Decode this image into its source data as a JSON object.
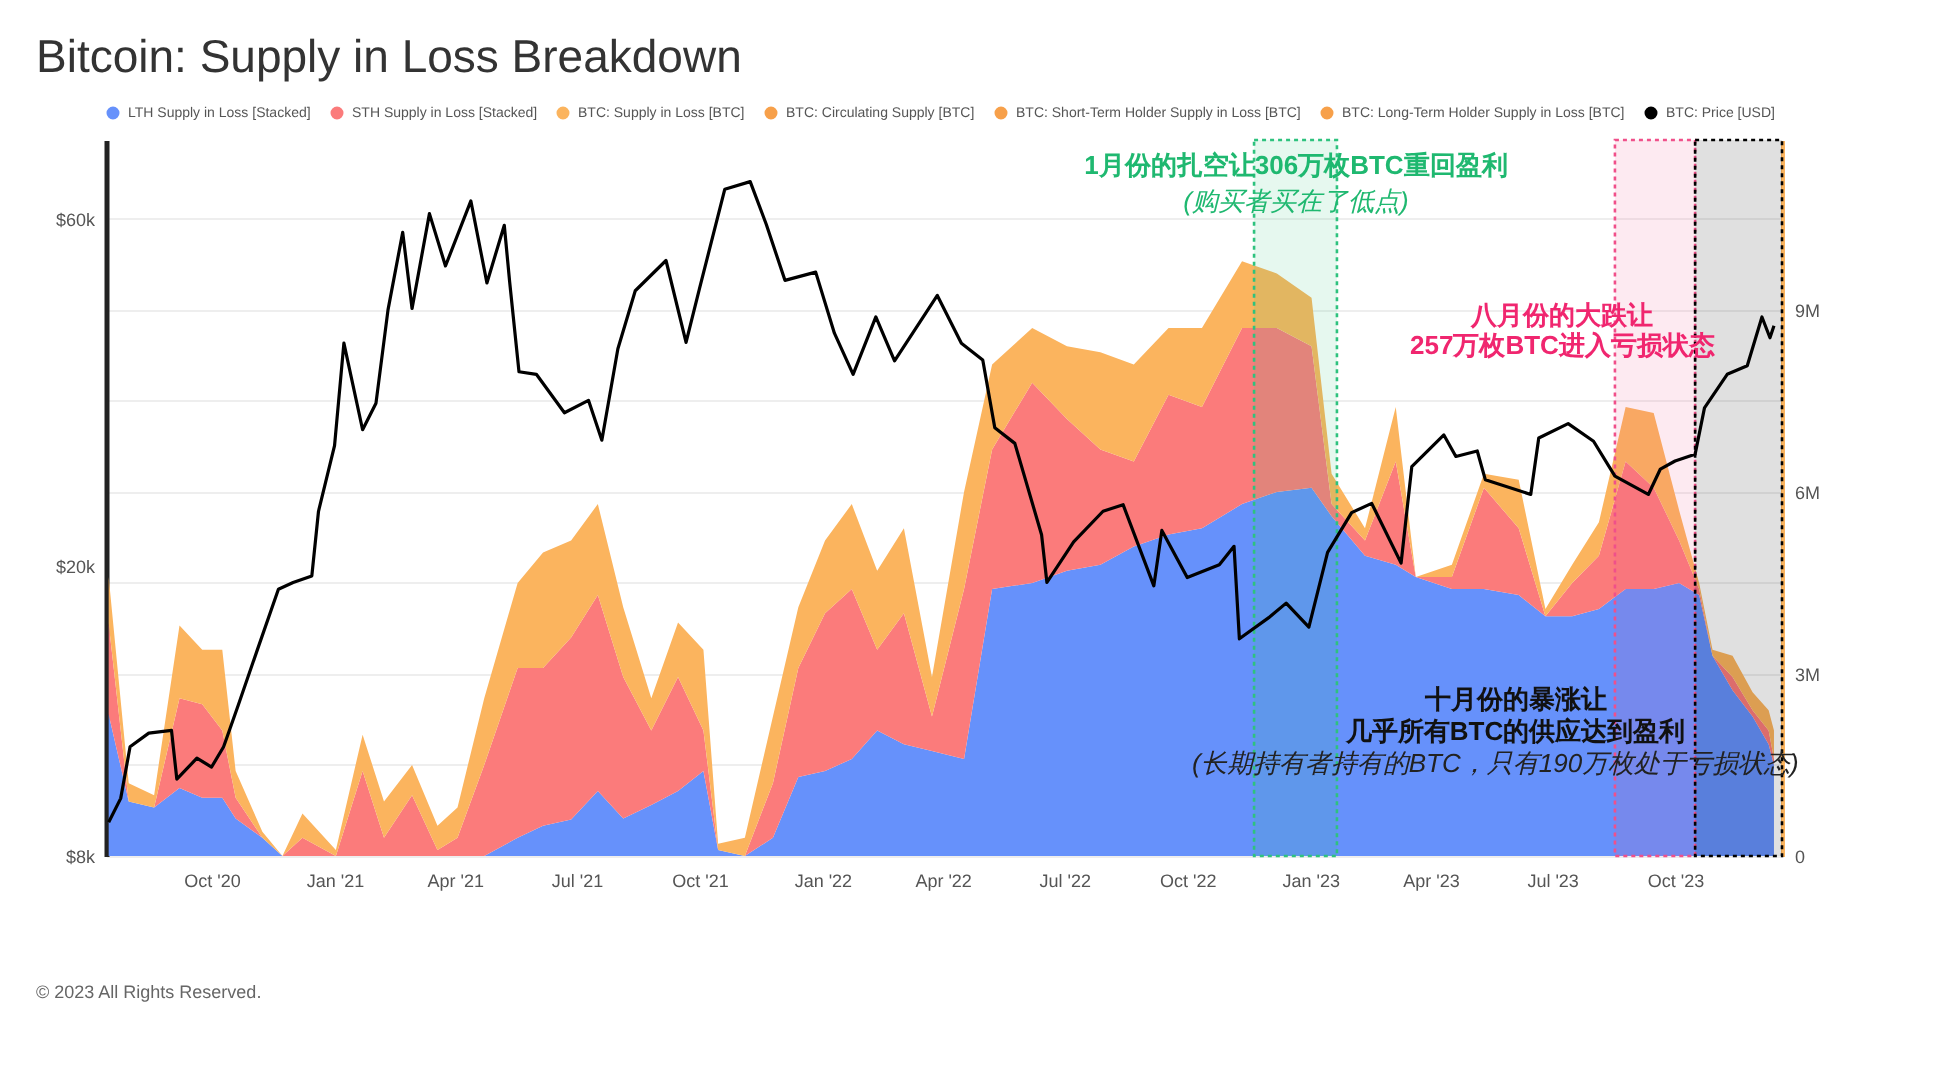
{
  "chart_data": {
    "type": "area",
    "title": "Bitcoin: Supply in Loss Breakdown",
    "xlim": [
      "2020-07-14",
      "2023-12-20"
    ],
    "xticks": [
      {
        "value": "2020-10-01",
        "label": "Oct '20"
      },
      {
        "value": "2021-01-01",
        "label": "Jan '21"
      },
      {
        "value": "2021-04-01",
        "label": "Apr '21"
      },
      {
        "value": "2021-07-01",
        "label": "Jul '21"
      },
      {
        "value": "2021-10-01",
        "label": "Oct '21"
      },
      {
        "value": "2022-01-01",
        "label": "Jan '22"
      },
      {
        "value": "2022-04-01",
        "label": "Apr '22"
      },
      {
        "value": "2022-07-01",
        "label": "Jul '22"
      },
      {
        "value": "2022-10-01",
        "label": "Oct '22"
      },
      {
        "value": "2023-01-01",
        "label": "Jan '23"
      },
      {
        "value": "2023-04-01",
        "label": "Apr '23"
      },
      {
        "value": "2023-07-01",
        "label": "Jul '23"
      },
      {
        "value": "2023-10-01",
        "label": "Oct '23"
      }
    ],
    "log": "y",
    "ylim": [
      8000,
      77000
    ],
    "yticks": [
      {
        "value": 8000,
        "label": "$8k"
      },
      {
        "value": 20000,
        "label": "$20k"
      },
      {
        "value": 60000,
        "label": "$60k"
      }
    ],
    "y2lim": [
      0,
      11.8
    ],
    "y2ticks": [
      0,
      {
        "value": 1.5,
        "label": null
      },
      {
        "value": 3,
        "label": "3M"
      },
      {
        "value": 4.5,
        "label": null
      },
      {
        "value": 6,
        "label": "6M"
      },
      {
        "value": 7.5,
        "label": null
      },
      {
        "value": 9,
        "label": "9M"
      },
      {
        "value": 10.5,
        "label": null
      }
    ],
    "grid": "y2",
    "legend": "top",
    "stacked": true,
    "marker": "none",
    "line_style": "solid",
    "series": [
      {
        "name": "LTH Supply in Loss [Stacked]",
        "color": "#6691fb",
        "axis": "y2",
        "x": [
          "2020-07-16",
          "2020-07-31",
          "2020-08-19",
          "2020-09-07",
          "2020-09-24",
          "2020-10-09",
          "2020-10-19",
          "2020-11-08",
          "2020-11-23",
          "2020-12-08",
          "2021-01-02",
          "2021-01-22",
          "2021-02-07",
          "2021-02-28",
          "2021-03-19",
          "2021-04-03",
          "2021-04-23",
          "2021-05-18",
          "2021-06-06",
          "2021-06-27",
          "2021-07-17",
          "2021-08-05",
          "2021-08-26",
          "2021-09-15",
          "2021-10-04",
          "2021-10-15",
          "2021-11-04",
          "2021-11-25",
          "2021-12-14",
          "2022-01-03",
          "2022-01-23",
          "2022-02-11",
          "2022-03-03",
          "2022-03-24",
          "2022-04-17",
          "2022-05-08",
          "2022-06-07",
          "2022-07-03",
          "2022-07-28",
          "2022-08-22",
          "2022-09-17",
          "2022-10-12",
          "2022-11-11",
          "2022-12-07",
          "2023-01-02",
          "2023-01-17",
          "2023-02-11",
          "2023-03-06",
          "2023-03-21",
          "2023-04-17",
          "2023-05-11",
          "2023-06-06",
          "2023-06-26",
          "2023-07-16",
          "2023-08-05",
          "2023-08-25",
          "2023-09-15",
          "2023-10-04",
          "2023-10-19",
          "2023-10-29",
          "2023-11-13",
          "2023-11-28",
          "2023-12-10",
          "2023-12-14"
        ],
        "values": [
          2.33,
          0.9,
          0.8,
          1.12,
          0.96,
          0.96,
          0.62,
          0.3,
          0,
          0,
          0,
          0,
          0,
          0,
          0,
          0,
          0,
          0.3,
          0.5,
          0.6,
          1.07,
          0.62,
          0.84,
          1.07,
          1.4,
          0.1,
          0,
          0.3,
          1.3,
          1.4,
          1.6,
          2.07,
          1.84,
          1.73,
          1.6,
          4.4,
          4.5,
          4.7,
          4.8,
          5.1,
          5.3,
          5.4,
          5.8,
          6.0,
          6.07,
          5.6,
          4.95,
          4.8,
          4.6,
          4.4,
          4.4,
          4.3,
          3.95,
          3.95,
          4.07,
          4.4,
          4.4,
          4.5,
          4.3,
          3.3,
          2.73,
          2.3,
          1.84,
          1.5
        ]
      },
      {
        "name": "STH Supply in Loss [Stacked]",
        "color": "#fb7b7b",
        "axis": "y2",
        "x": [
          "2020-07-16",
          "2020-07-31",
          "2020-08-19",
          "2020-09-07",
          "2020-09-24",
          "2020-10-09",
          "2020-10-19",
          "2020-11-08",
          "2020-11-23",
          "2020-12-08",
          "2021-01-02",
          "2021-01-22",
          "2021-02-07",
          "2021-02-28",
          "2021-03-19",
          "2021-04-03",
          "2021-04-23",
          "2021-05-18",
          "2021-06-06",
          "2021-06-27",
          "2021-07-17",
          "2021-08-05",
          "2021-08-26",
          "2021-09-15",
          "2021-10-04",
          "2021-10-15",
          "2021-11-04",
          "2021-11-25",
          "2021-12-14",
          "2022-01-03",
          "2022-01-23",
          "2022-02-11",
          "2022-03-03",
          "2022-03-24",
          "2022-04-17",
          "2022-05-08",
          "2022-06-07",
          "2022-07-03",
          "2022-07-28",
          "2022-08-22",
          "2022-09-17",
          "2022-10-12",
          "2022-11-11",
          "2022-12-07",
          "2023-01-02",
          "2023-01-17",
          "2023-02-11",
          "2023-03-06",
          "2023-03-21",
          "2023-04-17",
          "2023-05-11",
          "2023-06-06",
          "2023-06-26",
          "2023-07-16",
          "2023-08-05",
          "2023-08-25",
          "2023-09-15",
          "2023-10-04",
          "2023-10-19",
          "2023-10-29",
          "2023-11-13",
          "2023-11-28",
          "2023-12-10",
          "2023-12-14"
        ],
        "values": [
          1.5,
          0,
          0,
          1.48,
          1.54,
          1.11,
          0.34,
          0,
          0,
          0.3,
          0,
          1.4,
          0.3,
          1.0,
          0.1,
          0.3,
          1.5,
          2.8,
          2.6,
          3.0,
          3.23,
          2.33,
          1.23,
          1.88,
          0.67,
          0,
          0,
          0.9,
          1.8,
          2.6,
          2.8,
          1.33,
          2.16,
          0.57,
          2.8,
          2.3,
          3.3,
          2.5,
          1.9,
          1.4,
          2.3,
          2.0,
          2.9,
          2.7,
          2.33,
          0.2,
          0.25,
          1.7,
          0,
          0.2,
          1.67,
          1.1,
          0,
          0.55,
          0.88,
          2.1,
          1.67,
          0.7,
          0.1,
          0,
          0.22,
          0.1,
          0.23,
          0.1
        ]
      },
      {
        "name": "BTC: Supply in Loss [BTC]",
        "color": "#fbb45e",
        "axis": "y2",
        "x": [
          "2020-07-16",
          "2020-07-31",
          "2020-08-19",
          "2020-09-07",
          "2020-09-24",
          "2020-10-09",
          "2020-10-19",
          "2020-11-08",
          "2020-11-23",
          "2020-12-08",
          "2021-01-02",
          "2021-01-22",
          "2021-02-07",
          "2021-02-28",
          "2021-03-19",
          "2021-04-03",
          "2021-04-23",
          "2021-05-18",
          "2021-06-06",
          "2021-06-27",
          "2021-07-17",
          "2021-08-05",
          "2021-08-26",
          "2021-09-15",
          "2021-10-04",
          "2021-10-15",
          "2021-11-04",
          "2021-11-25",
          "2021-12-14",
          "2022-01-03",
          "2022-01-23",
          "2022-02-11",
          "2022-03-03",
          "2022-03-24",
          "2022-04-17",
          "2022-05-08",
          "2022-06-07",
          "2022-07-03",
          "2022-07-28",
          "2022-08-22",
          "2022-09-17",
          "2022-10-12",
          "2022-11-11",
          "2022-12-07",
          "2023-01-02",
          "2023-01-17",
          "2023-02-11",
          "2023-03-06",
          "2023-03-21",
          "2023-04-17",
          "2023-05-11",
          "2023-06-06",
          "2023-06-26",
          "2023-07-16",
          "2023-08-05",
          "2023-08-25",
          "2023-09-15",
          "2023-10-04",
          "2023-10-19",
          "2023-10-29",
          "2023-11-13",
          "2023-11-28",
          "2023-12-10",
          "2023-12-14"
        ],
        "values": [
          0.77,
          0.3,
          0.2,
          1.2,
          0.9,
          1.33,
          0.44,
          0.1,
          0,
          0.4,
          0.1,
          0.6,
          0.6,
          0.5,
          0.4,
          0.5,
          1.1,
          1.4,
          1.9,
          1.6,
          1.5,
          1.15,
          0.53,
          0.9,
          1.33,
          0.1,
          0.3,
          1.1,
          1.0,
          1.2,
          1.4,
          1.3,
          1.4,
          0.65,
          1.6,
          1.4,
          0.9,
          1.2,
          1.6,
          1.6,
          1.1,
          1.3,
          1.1,
          0.9,
          0.8,
          0.5,
          0.2,
          0.9,
          0,
          0.2,
          0.23,
          0.8,
          0.12,
          0.3,
          0.55,
          0.9,
          1.23,
          0.5,
          0.1,
          0.1,
          0.35,
          0.3,
          0.33,
          0.47
        ]
      },
      {
        "name": "BTC: Circulating Supply [BTC]",
        "color": "#f7a04a",
        "axis": "y2"
      },
      {
        "name": "BTC: Short-Term Holder Supply in Loss [BTC]",
        "color": "#f7a04a",
        "axis": "y2"
      },
      {
        "name": "BTC: Long-Term Holder Supply in Loss [BTC]",
        "color": "#f7a04a",
        "axis": "y2"
      },
      {
        "name": "BTC: Price [USD]",
        "color": "#000000",
        "type": "line",
        "axis": "y",
        "x": [
          "2020-07-16",
          "2020-07-25",
          "2020-08-01",
          "2020-08-15",
          "2020-09-01",
          "2020-09-05",
          "2020-09-20",
          "2020-10-01",
          "2020-10-10",
          "2020-10-21",
          "2020-11-05",
          "2020-11-20",
          "2020-12-01",
          "2020-12-15",
          "2020-12-20",
          "2021-01-01",
          "2021-01-08",
          "2021-01-22",
          "2021-02-01",
          "2021-02-10",
          "2021-02-21",
          "2021-02-28",
          "2021-03-13",
          "2021-03-25",
          "2021-04-13",
          "2021-04-25",
          "2021-05-08",
          "2021-05-12",
          "2021-05-19",
          "2021-06-01",
          "2021-06-22",
          "2021-07-10",
          "2021-07-20",
          "2021-08-01",
          "2021-08-14",
          "2021-09-06",
          "2021-09-21",
          "2021-10-01",
          "2021-10-20",
          "2021-11-08",
          "2021-11-20",
          "2021-12-04",
          "2021-12-27",
          "2022-01-10",
          "2022-01-24",
          "2022-02-10",
          "2022-02-24",
          "2022-03-28",
          "2022-04-15",
          "2022-05-01",
          "2022-05-10",
          "2022-05-25",
          "2022-06-14",
          "2022-06-18",
          "2022-07-08",
          "2022-07-30",
          "2022-08-14",
          "2022-09-06",
          "2022-09-12",
          "2022-10-01",
          "2022-10-25",
          "2022-11-05",
          "2022-11-09",
          "2022-12-01",
          "2022-12-14",
          "2022-12-31",
          "2023-01-14",
          "2023-02-01",
          "2023-02-16",
          "2023-03-10",
          "2023-03-18",
          "2023-04-11",
          "2023-04-20",
          "2023-05-06",
          "2023-05-12",
          "2023-06-15",
          "2023-06-21",
          "2023-07-13",
          "2023-08-01",
          "2023-08-17",
          "2023-09-11",
          "2023-09-20",
          "2023-10-01",
          "2023-10-16",
          "2023-10-23",
          "2023-11-09",
          "2023-11-24",
          "2023-12-05",
          "2023-12-11",
          "2023-12-14"
        ],
        "values": [
          8900,
          9600,
          11300,
          11800,
          11900,
          10200,
          10900,
          10600,
          11300,
          12900,
          15500,
          18600,
          19000,
          19400,
          23800,
          29300,
          40500,
          30800,
          33500,
          45000,
          57500,
          45200,
          61000,
          51700,
          63500,
          49000,
          58800,
          49200,
          37000,
          36700,
          32500,
          33800,
          29800,
          39800,
          47800,
          52600,
          40600,
          48100,
          65900,
          67500,
          59000,
          49400,
          50700,
          41800,
          36700,
          44000,
          38300,
          47100,
          40500,
          38400,
          31000,
          29500,
          22100,
          19000,
          21600,
          23800,
          24300,
          18800,
          22400,
          19300,
          20100,
          21300,
          15900,
          17000,
          17800,
          16500,
          20900,
          23700,
          24400,
          20200,
          27400,
          30300,
          28300,
          28800,
          26300,
          25100,
          30000,
          31400,
          29700,
          26600,
          25100,
          27200,
          27900,
          28500,
          33000,
          36700,
          37700,
          44000,
          41200,
          42800
        ]
      }
    ],
    "bands": [
      {
        "axis": "x",
        "from": "2022-11-20",
        "to": "2023-01-21",
        "color": "#2ec27e"
      },
      {
        "axis": "x",
        "from": "2023-08-17",
        "to": "2023-10-16",
        "color": "#f0508a"
      },
      {
        "axis": "x",
        "from": "2023-10-16",
        "to": "2023-12-20",
        "color": "#000000"
      }
    ],
    "annotations": [
      "1月份的扎空让306万枚BTC重回盈利",
      "(购买者买在了低点)",
      "八月份的大跌让",
      "257万枚BTC进入亏损状态",
      "十月份的暴涨让",
      "几乎所有BTC的供应达到盈利",
      "(长期持有者持有的BTC，只有190万枚处于亏损状态)",
      "© 2023 All Rights Reserved."
    ]
  }
}
